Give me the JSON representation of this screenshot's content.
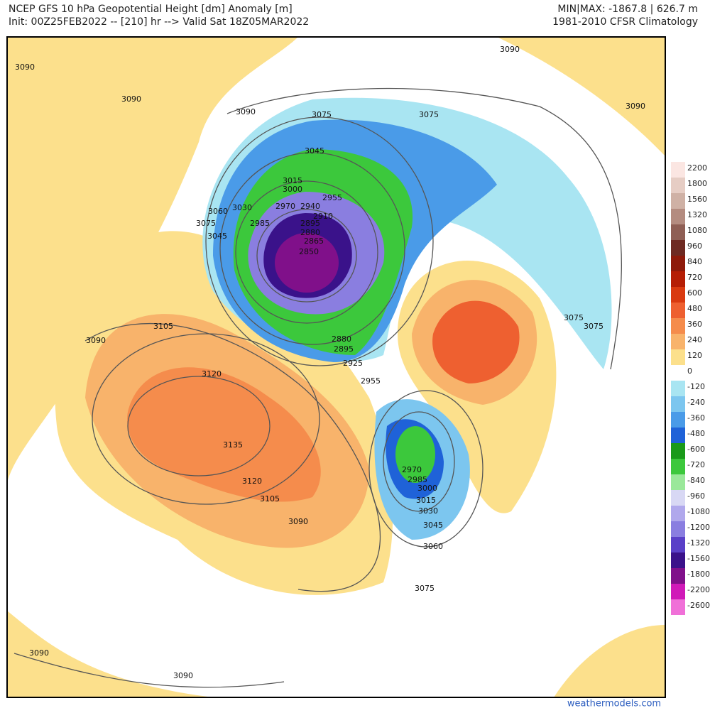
{
  "header": {
    "left_title": "NCEP GFS 10 hPa Geopotential Height [dm] Anomaly [m]",
    "left_subtitle": "Init: 00Z25FEB2022 -- [210] hr --> Valid Sat 18Z05MAR2022",
    "right_title": "MIN|MAX: -1867.8 | 626.7 m",
    "right_subtitle": "1981-2010 CFSR Climatology"
  },
  "colorbar": {
    "values": [
      2200,
      1800,
      1560,
      1320,
      1080,
      960,
      840,
      720,
      600,
      480,
      360,
      240,
      120,
      0,
      -120,
      -240,
      -360,
      -480,
      -600,
      -720,
      -840,
      -960,
      -1080,
      -1200,
      -1320,
      -1560,
      -1800,
      -2200,
      -2600
    ],
    "colors": [
      "#fbe6e2",
      "#e6cdc4",
      "#cfb1a5",
      "#b48c80",
      "#8f5f55",
      "#6e2a22",
      "#8e1a0a",
      "#b51e05",
      "#d93a10",
      "#ee6030",
      "#f58c4c",
      "#f8b36b",
      "#fce08c",
      "#ffffff",
      "#a9e5f2",
      "#7cc6ef",
      "#4a9be8",
      "#1f62d8",
      "#1a9a1a",
      "#3cc83c",
      "#9ae89a",
      "#d8d8f4",
      "#b0a8ec",
      "#8a7ee0",
      "#5a40c8",
      "#3a128a",
      "#80108a",
      "#d01ab8",
      "#f070d8"
    ]
  },
  "contour_labels": [
    "3090",
    "3090",
    "3090",
    "3090",
    "3090",
    "3090",
    "3090",
    "3090",
    "3090",
    "3075",
    "3075",
    "3075",
    "3075",
    "3075",
    "3075",
    "3045",
    "3045",
    "3045",
    "3015",
    "3015",
    "3000",
    "3000",
    "3060",
    "3060",
    "3030",
    "3030",
    "2970",
    "2970",
    "2940",
    "2955",
    "2955",
    "2910",
    "2985",
    "2985",
    "2895",
    "2895",
    "2880",
    "2880",
    "2865",
    "2850",
    "3105",
    "3105",
    "3120",
    "3120",
    "3135",
    "2925"
  ],
  "credit": "weathermodels.com"
}
